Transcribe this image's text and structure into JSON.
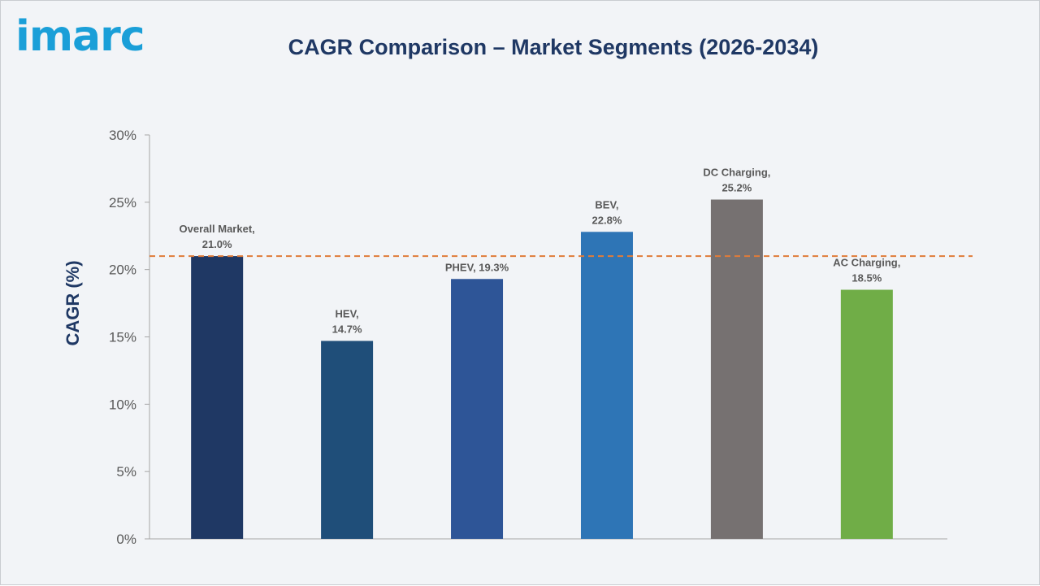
{
  "logo_text": "imarc",
  "chart_data": {
    "type": "bar",
    "title": "CAGR Comparison – Market Segments (2026-2034)",
    "xlabel": "",
    "ylabel": "CAGR (%)",
    "ylim": [
      0,
      30
    ],
    "yticks": [
      "0%",
      "5%",
      "10%",
      "15%",
      "20%",
      "25%",
      "30%"
    ],
    "categories": [
      "Overall Market",
      "HEV",
      "PHEV",
      "BEV",
      "DC Charging",
      "AC Charging"
    ],
    "values": [
      21.0,
      14.7,
      19.3,
      22.8,
      25.2,
      18.5
    ],
    "data_labels": [
      [
        "Overall Market,",
        "21.0%"
      ],
      [
        "HEV,",
        "14.7%"
      ],
      [
        "PHEV, 19.3%"
      ],
      [
        "BEV,",
        "22.8%"
      ],
      [
        "DC Charging,",
        "25.2%"
      ],
      [
        "AC Charging,",
        "18.5%"
      ]
    ],
    "colors": [
      "#1f3864",
      "#1f4e79",
      "#2e5597",
      "#2e75b6",
      "#767171",
      "#70ad47"
    ],
    "reference_line": {
      "value": 21.0,
      "color": "#e07b39",
      "style": "dashed"
    },
    "grid": false,
    "legend": "none"
  }
}
